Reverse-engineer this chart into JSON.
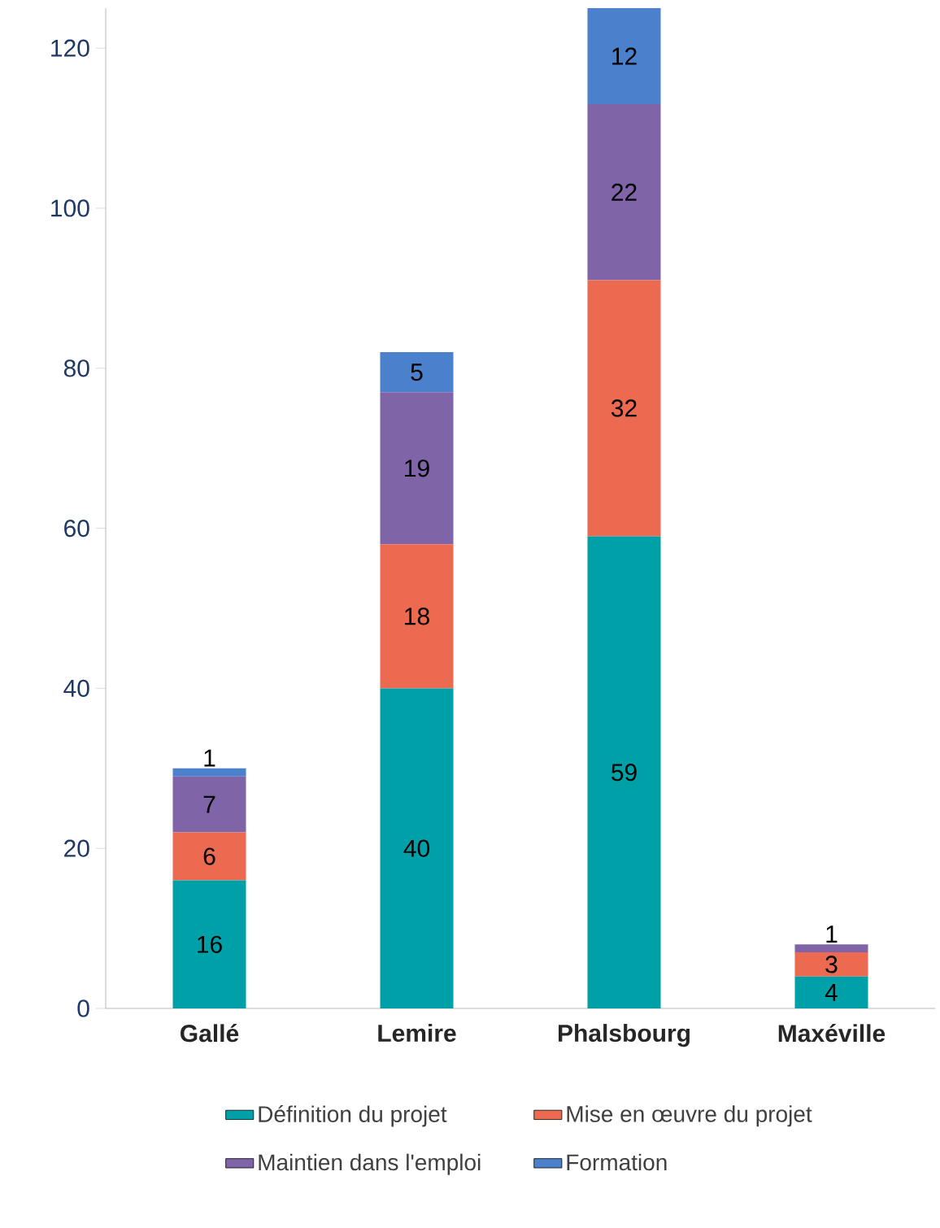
{
  "chart_data": {
    "type": "bar",
    "stacked": true,
    "categories": [
      "Gallé",
      "Lemire",
      "Phalsbourg",
      "Maxéville"
    ],
    "series": [
      {
        "name": "Définition du projet",
        "color": "#00a0a8",
        "values": [
          16,
          40,
          59,
          4
        ]
      },
      {
        "name": "Mise en œuvre du projet",
        "color": "#ec6a50",
        "values": [
          6,
          18,
          32,
          3
        ]
      },
      {
        "name": "Maintien dans l'emploi",
        "color": "#8064a8",
        "values": [
          7,
          19,
          22,
          1
        ]
      },
      {
        "name": "Formation",
        "color": "#4a80cc",
        "values": [
          1,
          5,
          12,
          null
        ]
      }
    ],
    "ylim": [
      0,
      125
    ],
    "yticks": [
      0,
      20,
      40,
      60,
      80,
      100,
      120
    ],
    "data_labels": true,
    "legend": "bottom",
    "grid": false
  }
}
